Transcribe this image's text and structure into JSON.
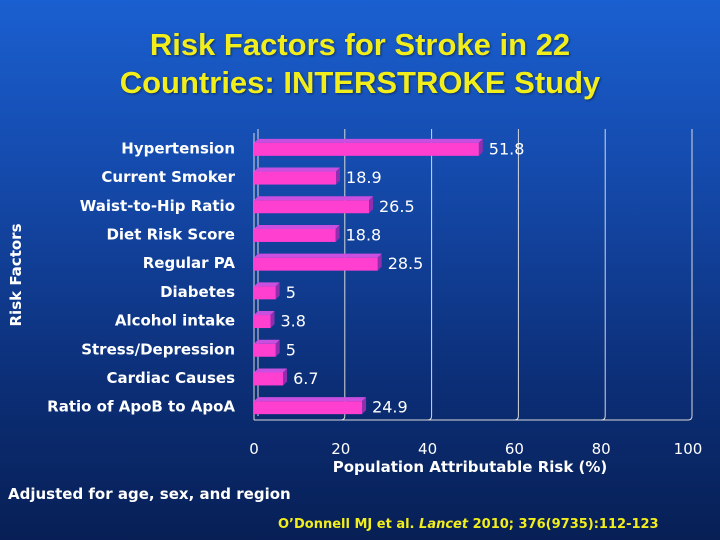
{
  "slide": {
    "title_line1": "Risk Factors for Stroke in 22",
    "title_line2": "Countries: INTERSTROKE Study",
    "note": "Adjusted for age, sex, and region",
    "citation_authors": "O’Donnell MJ et al.",
    "citation_journal": "Lancet",
    "citation_details": "2010; 376(9735):112-123"
  },
  "colors": {
    "bar_front": "#ff3fd0",
    "bar_side": "#8e2fb0",
    "bar_top": "#c84fe0",
    "axis_label": "#ffffff",
    "title": "#f2ee1c"
  },
  "chart_data": {
    "type": "bar",
    "orientation": "horizontal",
    "categories": [
      "Hypertension",
      "Current Smoker",
      "Waist-to-Hip Ratio",
      "Diet Risk Score",
      "Regular PA",
      "Diabetes",
      "Alcohol intake",
      "Stress/Depression",
      "Cardiac Causes",
      "Ratio of ApoB to ApoA"
    ],
    "values": [
      51.8,
      18.9,
      26.5,
      18.8,
      28.5,
      5,
      3.8,
      5,
      6.7,
      24.9
    ],
    "value_labels": [
      "51.8",
      "18.9",
      "26.5",
      "18.8",
      "28.5",
      "5",
      "3.8",
      "5",
      "6.7",
      "24.9"
    ],
    "xlabel": "Population Attributable Risk (%)",
    "ylabel": "Risk Factors",
    "xlim": [
      0,
      100
    ],
    "xticks": [
      0,
      20,
      40,
      60,
      80,
      100
    ],
    "xtick_labels": [
      "0",
      "20",
      "40",
      "60",
      "80",
      "100"
    ],
    "grid": "vertical",
    "style": "3d",
    "legend": "none"
  }
}
